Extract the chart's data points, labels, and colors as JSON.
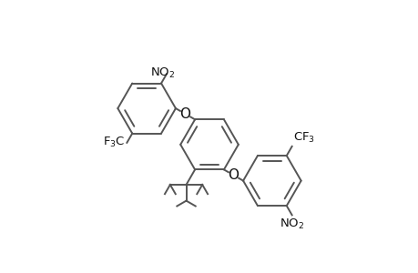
{
  "bg_color": "#ffffff",
  "line_color": "#555555",
  "text_color": "#111111",
  "line_width": 1.4,
  "font_size": 9.5,
  "fig_width": 4.6,
  "fig_height": 3.0,
  "dpi": 100,
  "r": 0.108
}
